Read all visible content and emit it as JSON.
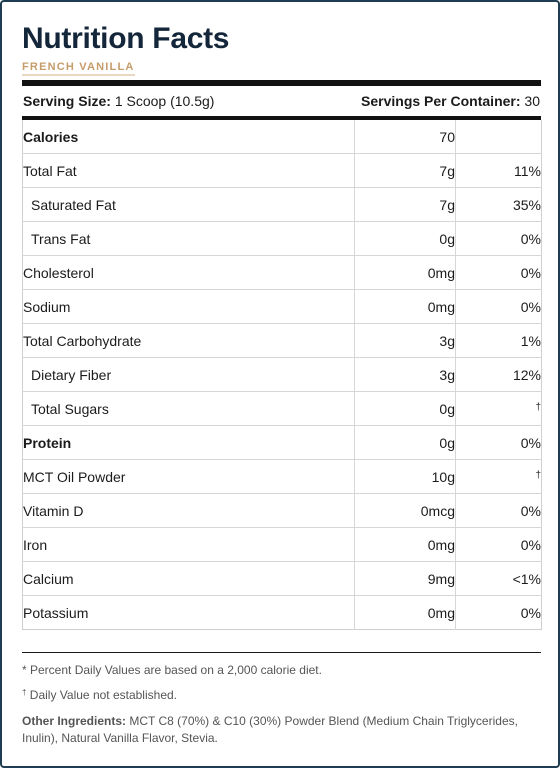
{
  "title": "Nutrition Facts",
  "flavor": "FRENCH VANILLA",
  "serving": {
    "size_label": "Serving Size:",
    "size_value": "1 Scoop (10.5g)",
    "per_container_label": "Servings Per Container:",
    "per_container_value": "30"
  },
  "rows": [
    {
      "name": "Calories",
      "amount": "70",
      "dv": ""
    },
    {
      "name": "Total Fat",
      "amount": "7g",
      "dv": "11%"
    },
    {
      "name": "Saturated Fat",
      "amount": "7g",
      "dv": "35%"
    },
    {
      "name": "Trans Fat",
      "amount": "0g",
      "dv": "0%"
    },
    {
      "name": "Cholesterol",
      "amount": "0mg",
      "dv": "0%"
    },
    {
      "name": "Sodium",
      "amount": "0mg",
      "dv": "0%"
    },
    {
      "name": "Total Carbohydrate",
      "amount": "3g",
      "dv": "1%"
    },
    {
      "name": "Dietary Fiber",
      "amount": "3g",
      "dv": "12%"
    },
    {
      "name": "Total Sugars",
      "amount": "0g",
      "dv": "†"
    },
    {
      "name": "Protein",
      "amount": "0g",
      "dv": "0%"
    },
    {
      "name": "MCT Oil Powder",
      "amount": "10g",
      "dv": "†"
    },
    {
      "name": "Vitamin D",
      "amount": "0mcg",
      "dv": "0%"
    },
    {
      "name": "Iron",
      "amount": "0mg",
      "dv": "0%"
    },
    {
      "name": "Calcium",
      "amount": "9mg",
      "dv": "<1%"
    },
    {
      "name": "Potassium",
      "amount": "0mg",
      "dv": "0%"
    }
  ],
  "footnotes": {
    "percent_dv": "* Percent Daily Values are based on a 2,000 calorie diet.",
    "dagger_symbol": "†",
    "not_established": "Daily Value not established.",
    "ingredients_label": "Other Ingredients:",
    "ingredients_text": "MCT C8 (70%) & C10 (30%) Powder Blend (Medium Chain Triglycerides, Inulin), Natural Vanilla Flavor, Stevia."
  }
}
